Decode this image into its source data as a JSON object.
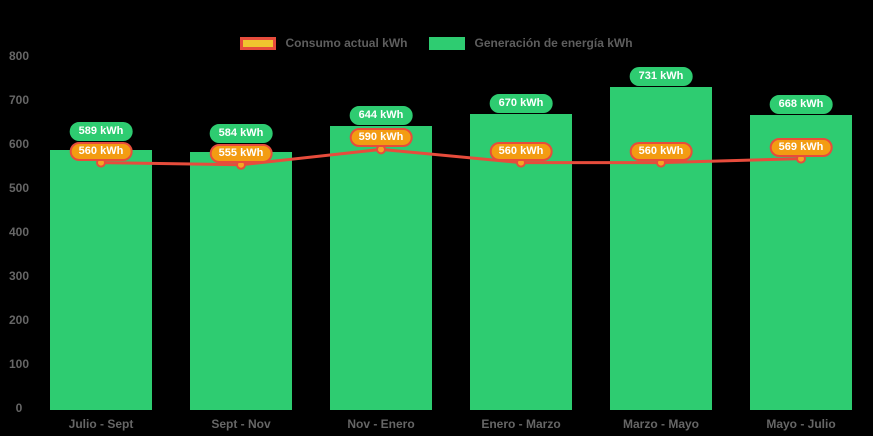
{
  "chart": {
    "background": "#000000",
    "axis_text_color": "#666666"
  },
  "legend": {
    "position": "top",
    "items": [
      {
        "label": "Consumo actual kWh",
        "swatch_fill": "#f0c52f",
        "swatch_border": "#e74c3c",
        "series": "line"
      },
      {
        "label": "Generación de energía kWh",
        "swatch_fill": "#2ecc71",
        "swatch_border": "#2ecc71",
        "series": "bar"
      }
    ]
  },
  "chart_data": {
    "type": "bar",
    "title": "",
    "xlabel": "",
    "ylabel": "",
    "categories": [
      "Julio - Sept",
      "Sept - Nov",
      "Nov - Enero",
      "Enero - Marzo",
      "Marzo - Mayo",
      "Mayo - Julio"
    ],
    "series": [
      {
        "name": "Generación de energía kWh",
        "type": "bar",
        "color": "#2ecc71",
        "values": [
          589,
          584,
          644,
          670,
          731,
          668
        ],
        "data_labels": [
          "589 kWh",
          "584 kWh",
          "644 kWh",
          "670 kWh",
          "731 kWh",
          "668 kWh"
        ],
        "label_bg": "#2ecc71",
        "label_border": "#2ecc71",
        "label_text_color": "#ffffff"
      },
      {
        "name": "Consumo actual kWh",
        "type": "line",
        "color": "#e74c3c",
        "point_fill": "#f5a623",
        "point_border": "#e74c3c",
        "values": [
          560,
          555,
          590,
          560,
          560,
          569
        ],
        "data_labels": [
          "560 kWh",
          "555 kWh",
          "590 kWh",
          "560 kWh",
          "560 kWh",
          "569 kWh"
        ],
        "label_bg": "#f39c12",
        "label_border": "#e74c3c",
        "label_text_color": "#ffffff"
      }
    ],
    "ylim": [
      0,
      800
    ],
    "yticks": [
      0,
      100,
      200,
      300,
      400,
      500,
      600,
      700,
      800
    ],
    "grid": false,
    "legend_position": "top"
  }
}
